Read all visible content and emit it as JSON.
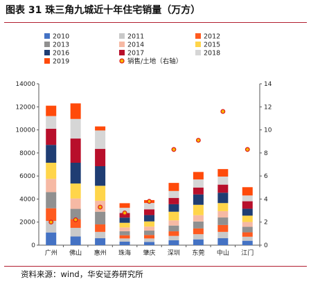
{
  "header": {
    "title": "图表 31  珠三角九城近十年住宅销量（万方）"
  },
  "footer": {
    "source": "资料来源：wind，华安证券研究所"
  },
  "chart_data": {
    "type": "bar",
    "stacked": true,
    "categories": [
      "广州",
      "佛山",
      "惠州",
      "珠海",
      "肇庆",
      "深圳",
      "东莞",
      "中山",
      "江门"
    ],
    "ylim": [
      0,
      14000
    ],
    "yticks": [
      "0",
      "2000",
      "4000",
      "6000",
      "8000",
      "10000",
      "12000",
      "14000"
    ],
    "y2lim": [
      0,
      14
    ],
    "y2ticks": [
      "0",
      "2",
      "4",
      "6",
      "8",
      "10",
      "12",
      "14"
    ],
    "grid": false,
    "legend_position": "top",
    "series": [
      {
        "name": "2010",
        "color": "#4472c4",
        "values": [
          1100,
          750,
          600,
          300,
          280,
          420,
          500,
          600,
          380
        ]
      },
      {
        "name": "2011",
        "color": "#c9c9c9",
        "values": [
          1000,
          750,
          550,
          280,
          300,
          380,
          450,
          550,
          350
        ]
      },
      {
        "name": "2012",
        "color": "#ff5a1f",
        "values": [
          1100,
          750,
          650,
          280,
          300,
          400,
          500,
          600,
          380
        ]
      },
      {
        "name": "2013",
        "color": "#909090",
        "values": [
          1400,
          900,
          1100,
          350,
          380,
          500,
          600,
          650,
          480
        ]
      },
      {
        "name": "2014",
        "color": "#f6b9a4",
        "values": [
          1150,
          900,
          950,
          330,
          350,
          450,
          550,
          550,
          420
        ]
      },
      {
        "name": "2015",
        "color": "#ffd54a",
        "values": [
          1400,
          1300,
          1300,
          400,
          450,
          750,
          900,
          700,
          550
        ]
      },
      {
        "name": "2016",
        "color": "#1f3d73",
        "values": [
          1550,
          1800,
          1700,
          450,
          550,
          650,
          900,
          900,
          600
        ]
      },
      {
        "name": "2017",
        "color": "#b80f2b",
        "values": [
          1400,
          2100,
          1500,
          400,
          500,
          550,
          600,
          700,
          650
        ]
      },
      {
        "name": "2018",
        "color": "#d6d6d6",
        "values": [
          1100,
          1700,
          1600,
          450,
          550,
          600,
          700,
          700,
          500
        ]
      },
      {
        "name": "2019",
        "color": "#ff4a0a",
        "values": [
          900,
          1350,
          350,
          400,
          250,
          700,
          650,
          650,
          720
        ]
      }
    ],
    "scatter_series": {
      "name": "销售/土地（右轴）",
      "axis": "right",
      "marker_color": "#e0201b",
      "values": [
        2.0,
        2.2,
        3.3,
        2.8,
        3.8,
        8.3,
        9.1,
        11.6,
        8.3
      ]
    }
  }
}
